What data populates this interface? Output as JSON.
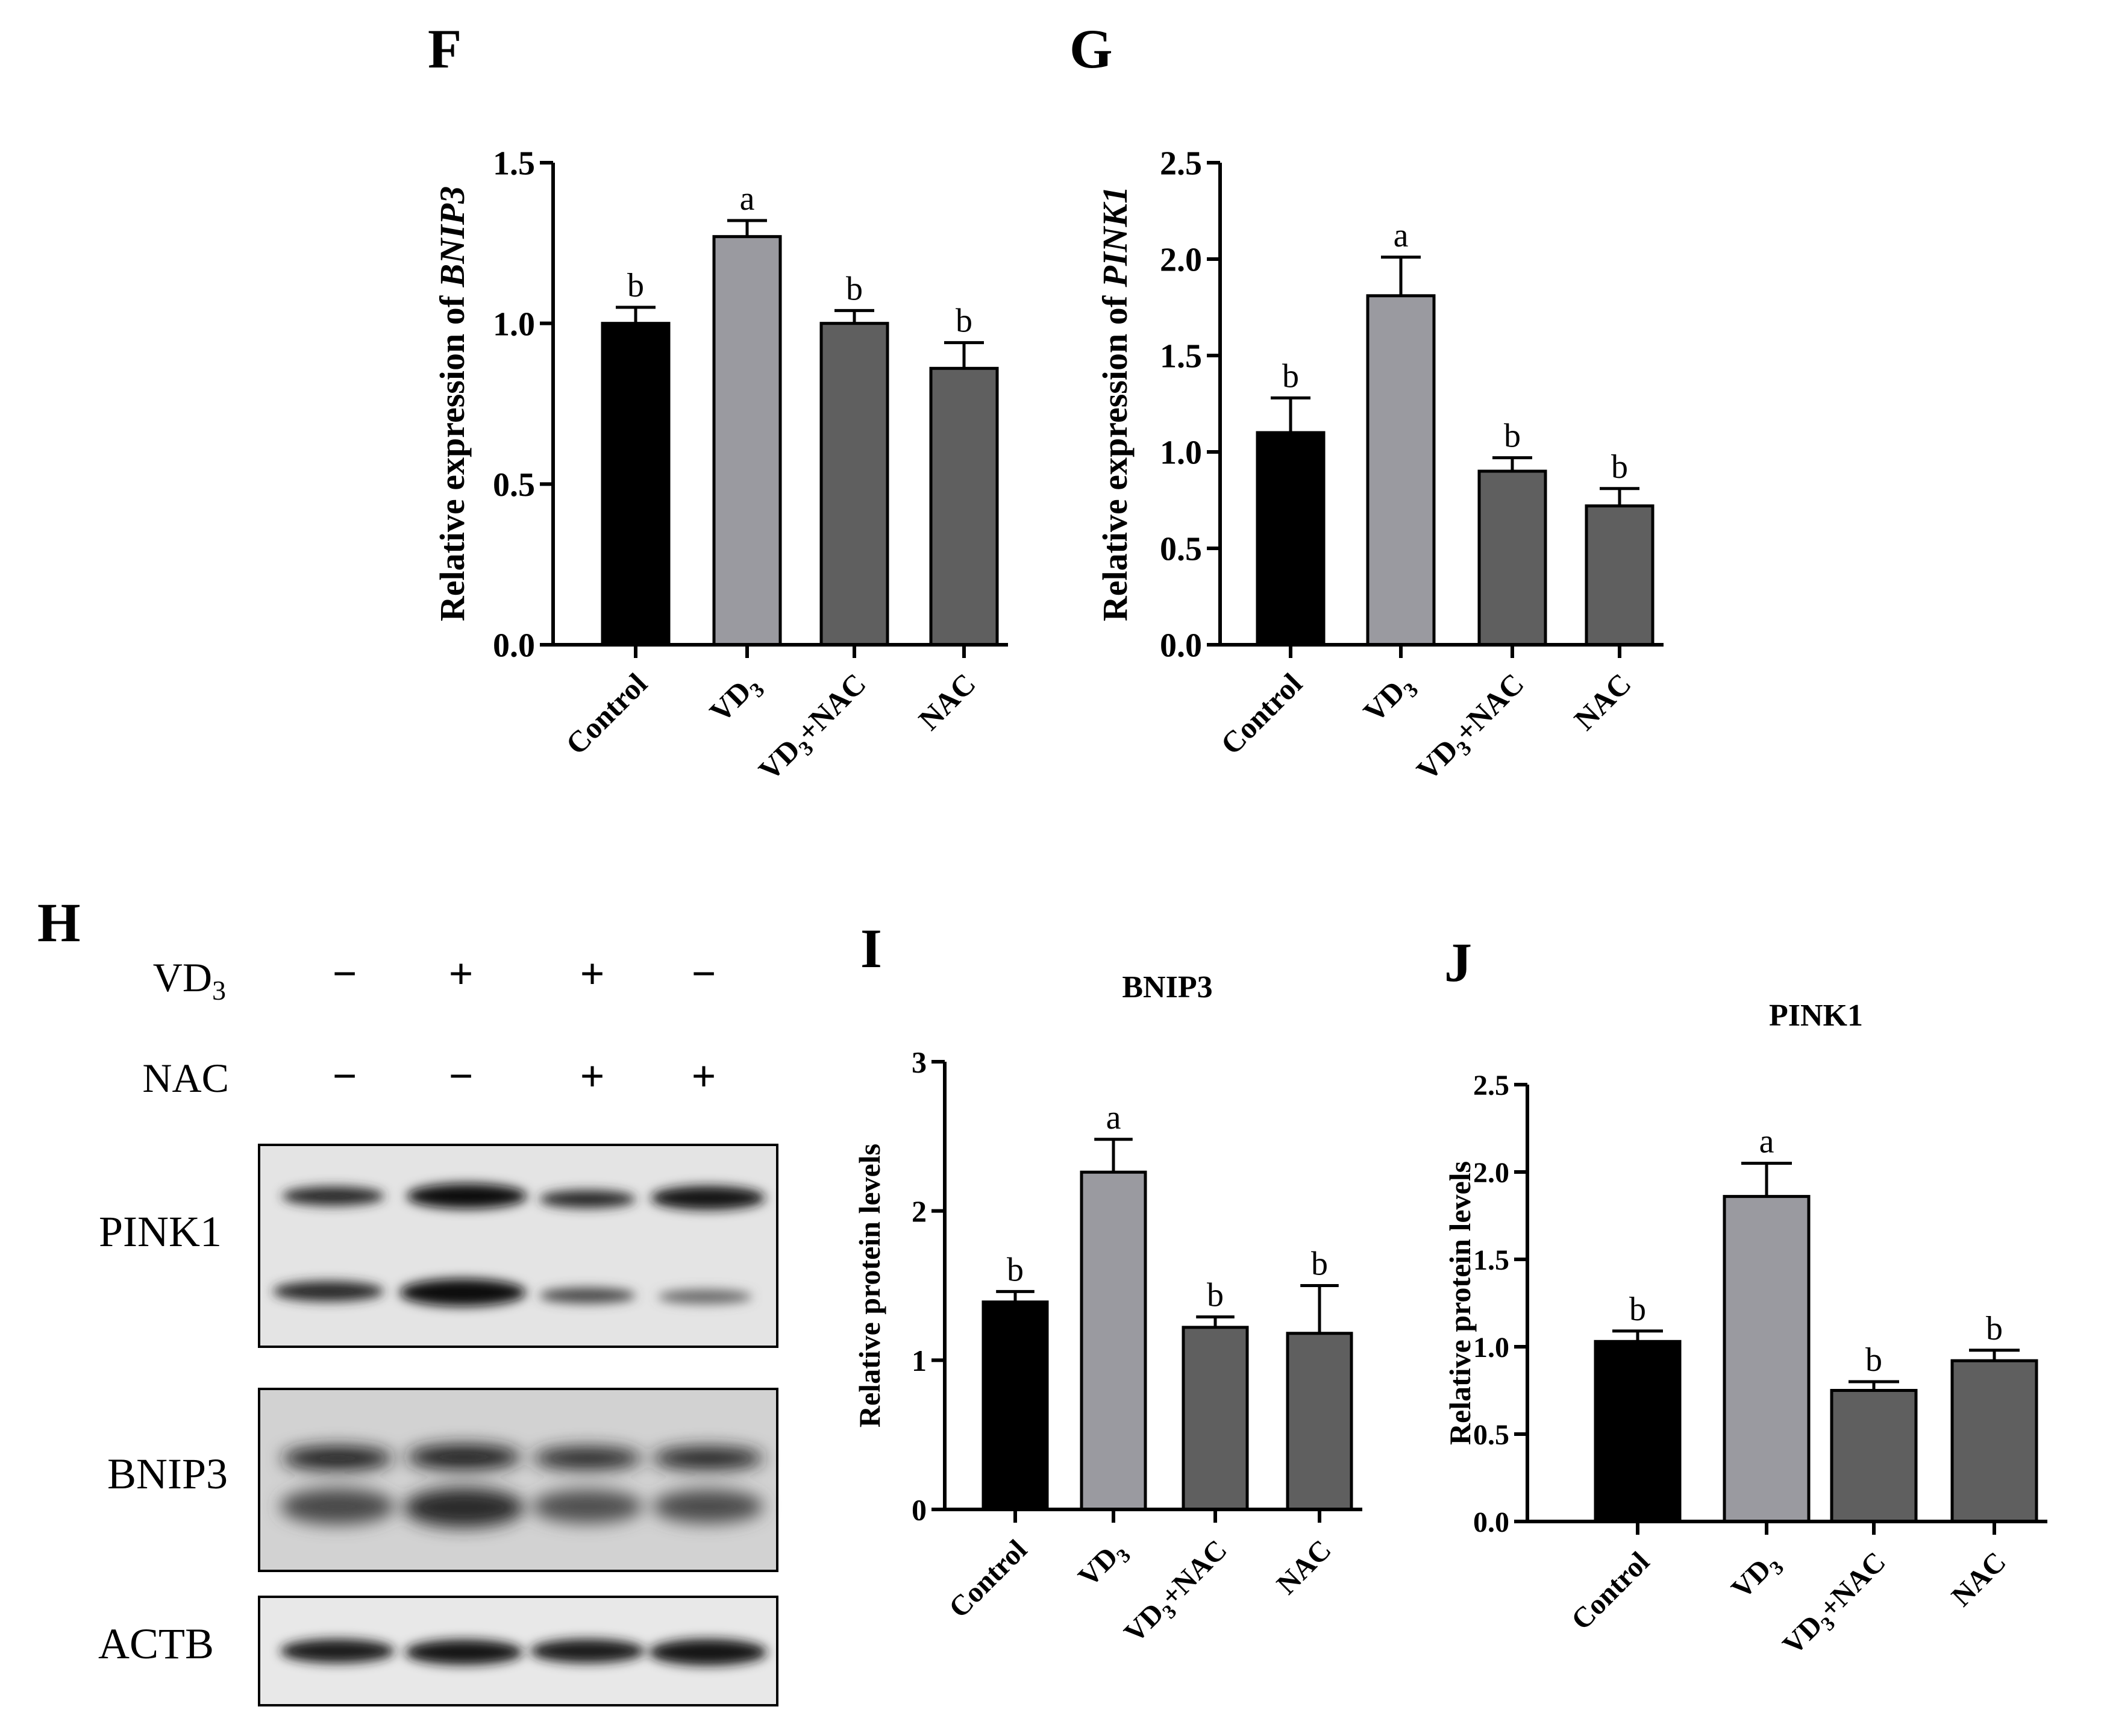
{
  "panel_letters": {
    "F": "F",
    "G": "G",
    "H": "H",
    "I": "I",
    "J": "J"
  },
  "colors": {
    "control": "#000000",
    "vd3": "#9a9aa0",
    "vd3_nac": "#5f5f5f",
    "nac": "#5f5f5f",
    "axis": "#000000"
  },
  "blot": {
    "row_labels": {
      "vd3": "VD3",
      "nac": "NAC"
    },
    "vd3_signs": [
      "−",
      "+",
      "+",
      "−"
    ],
    "nac_signs": [
      "−",
      "−",
      "+",
      "+"
    ],
    "bands": [
      "PINK1",
      "BNIP3",
      "ACTB"
    ]
  },
  "chart_data": [
    {
      "panel": "F",
      "type": "bar",
      "title": "",
      "ylabel": "Relative expression of BNIP3",
      "categories": [
        "Control",
        "VD3",
        "VD3+NAC",
        "NAC"
      ],
      "values": [
        1.0,
        1.27,
        1.0,
        0.86
      ],
      "errors": [
        0.05,
        0.05,
        0.04,
        0.08
      ],
      "letters": [
        "b",
        "a",
        "b",
        "b"
      ],
      "ylim": [
        0,
        1.5
      ],
      "yticks": [
        "0.0",
        "0.5",
        "1.0",
        "1.5"
      ]
    },
    {
      "panel": "G",
      "type": "bar",
      "title": "",
      "ylabel": "Relative expression of PINK1",
      "categories": [
        "Control",
        "VD3",
        "VD3+NAC",
        "NAC"
      ],
      "values": [
        1.1,
        1.81,
        0.9,
        0.72
      ],
      "errors": [
        0.18,
        0.2,
        0.07,
        0.09
      ],
      "letters": [
        "b",
        "a",
        "b",
        "b"
      ],
      "ylim": [
        0,
        2.5
      ],
      "yticks": [
        "0.0",
        "0.5",
        "1.0",
        "1.5",
        "2.0",
        "2.5"
      ]
    },
    {
      "panel": "I",
      "type": "bar",
      "title": "BNIP3",
      "ylabel": "Relative protein levels",
      "categories": [
        "Control",
        "VD3",
        "VD3+NAC",
        "NAC"
      ],
      "values": [
        1.39,
        2.26,
        1.22,
        1.18
      ],
      "errors": [
        0.07,
        0.22,
        0.07,
        0.32
      ],
      "letters": [
        "b",
        "a",
        "b",
        "b"
      ],
      "ylim": [
        0,
        3
      ],
      "yticks": [
        "0",
        "1",
        "2",
        "3"
      ]
    },
    {
      "panel": "J",
      "type": "bar",
      "title": "PINK1",
      "ylabel": "Relative protein levels",
      "categories": [
        "Control",
        "VD3",
        "VD3+NAC",
        "NAC"
      ],
      "values": [
        1.03,
        1.86,
        0.75,
        0.92
      ],
      "errors": [
        0.06,
        0.19,
        0.05,
        0.06
      ],
      "letters": [
        "b",
        "a",
        "b",
        "b"
      ],
      "ylim": [
        0,
        2.5
      ],
      "yticks": [
        "0.0",
        "0.5",
        "1.0",
        "1.5",
        "2.0",
        "2.5"
      ]
    }
  ]
}
